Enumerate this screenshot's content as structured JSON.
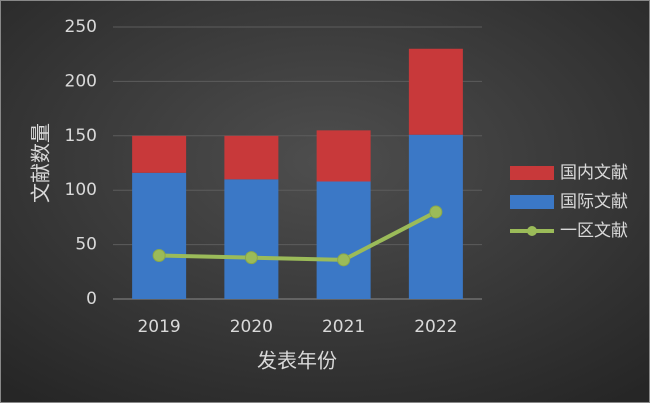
{
  "chart_data": {
    "type": "bar-line",
    "x_label": "发表年份",
    "y_label": "文献数量",
    "categories": [
      "2019",
      "2020",
      "2021",
      "2022"
    ],
    "series": [
      {
        "name": "国际文献",
        "type": "bar",
        "color": "#3b78c6",
        "values": [
          116,
          110,
          108,
          151
        ]
      },
      {
        "name": "国内文献",
        "type": "bar",
        "color": "#c8393a",
        "values": [
          34,
          40,
          47,
          79
        ]
      },
      {
        "name": "一区文献",
        "type": "line",
        "color": "#9bbb59",
        "values": [
          40,
          38,
          36,
          80
        ]
      }
    ],
    "stacked": true,
    "ylim": [
      0,
      250
    ],
    "yticks": [
      0,
      50,
      100,
      150,
      200,
      250
    ],
    "grid": true,
    "legend": "right"
  }
}
